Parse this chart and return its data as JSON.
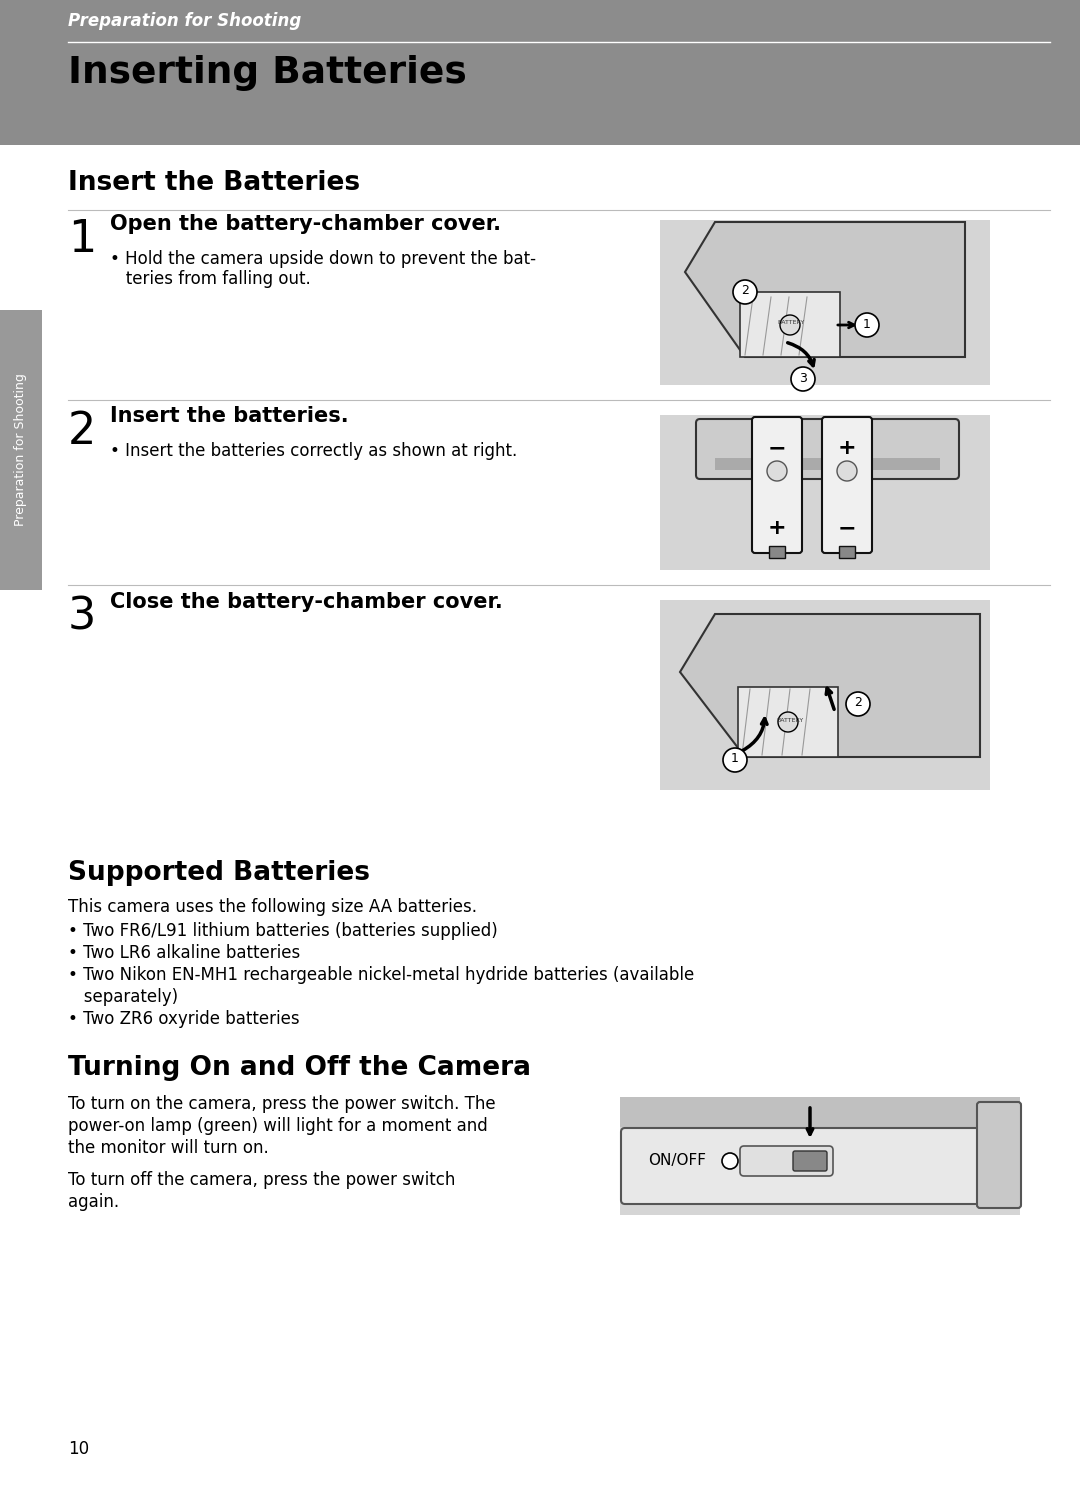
{
  "page_bg": "#ffffff",
  "header_bg": "#8c8c8c",
  "header_text": "Preparation for Shooting",
  "header_text_color": "#ffffff",
  "title": "Inserting Batteries",
  "title_color": "#000000",
  "section1_title": "Insert the Batteries",
  "step1_num": "1",
  "step1_heading": "Open the battery-chamber cover.",
  "step1_bullet1": "• Hold the camera upside down to prevent the bat-",
  "step1_bullet2": "   teries from falling out.",
  "step2_num": "2",
  "step2_heading": "Insert the batteries.",
  "step2_bullet": "• Insert the batteries correctly as shown at right.",
  "step3_num": "3",
  "step3_heading": "Close the battery-chamber cover.",
  "section2_title": "Supported Batteries",
  "section2_intro": "This camera uses the following size AA batteries.",
  "section2_bullets": [
    "• Two FR6/L91 lithium batteries (batteries supplied)",
    "• Two LR6 alkaline batteries",
    "• Two Nikon EN-MH1 rechargeable nickel-metal hydride batteries (available",
    "   separately)",
    "• Two ZR6 oxyride batteries"
  ],
  "section3_title": "Turning On and Off the Camera",
  "section3_text1a": "To turn on the camera, press the power switch. The",
  "section3_text1b": "power-on lamp (green) will light for a moment and",
  "section3_text1c": "the monitor will turn on.",
  "section3_text2a": "To turn off the camera, press the power switch",
  "section3_text2b": "again.",
  "page_number": "10",
  "sidebar_text": "Preparation for Shooting",
  "sidebar_bg": "#999999",
  "lm": 68,
  "rm": 1020
}
